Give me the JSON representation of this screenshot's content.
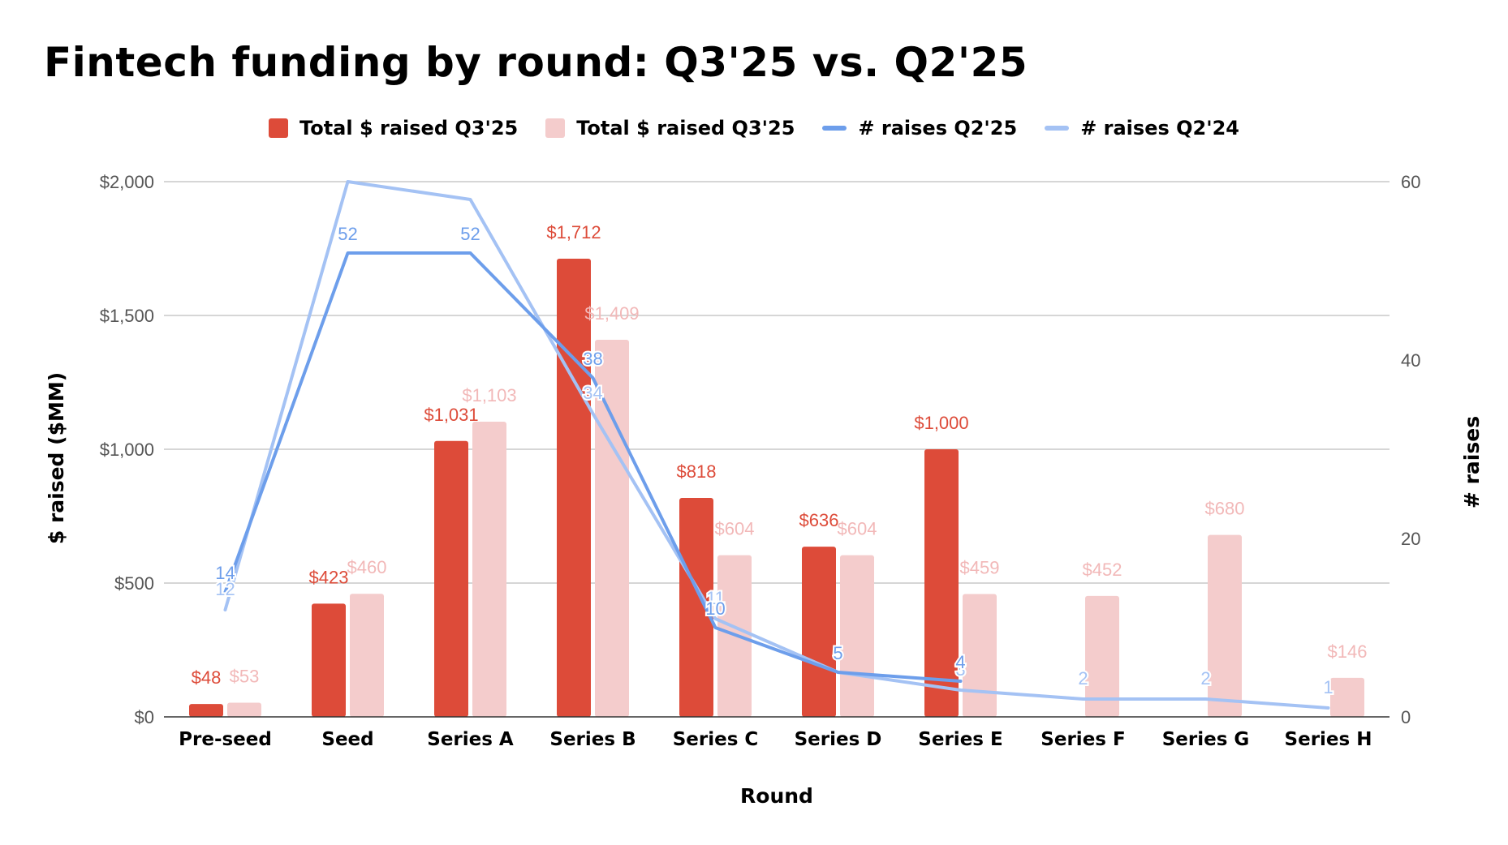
{
  "chart_data": {
    "type": "bar",
    "title": "Fintech funding by round: Q3'25 vs. Q2'25",
    "xlabel": "Round",
    "ylabel": "$ raised ($MM)",
    "y2label": "# raises",
    "ylim": [
      0,
      2000
    ],
    "y2lim": [
      0,
      60
    ],
    "yticks": [
      "$0",
      "$500",
      "$1,000",
      "$1,500",
      "$2,000"
    ],
    "yticks_values": [
      0,
      500,
      1000,
      1500,
      2000
    ],
    "y2ticks": [
      0,
      20,
      40,
      60
    ],
    "grid": true,
    "legend_position": "top-center",
    "categories": [
      "Pre-seed",
      "Seed",
      "Series A",
      "Series B",
      "Series C",
      "Series D",
      "Series E",
      "Series F",
      "Series G",
      "Series H"
    ],
    "bar_series": [
      {
        "name": "Total $ raised Q3'25",
        "color": "#dd4b39",
        "values": [
          48,
          423,
          1031,
          1712,
          818,
          636,
          1000,
          null,
          null,
          null
        ],
        "labels": [
          "$48",
          "$423",
          "$1,031",
          "$1,712",
          "$818",
          "$636",
          "$1,000",
          null,
          null,
          null
        ]
      },
      {
        "name": "Total $ raised Q3'25",
        "color": "#f4cccc",
        "label_color": "#f2b8b8",
        "values": [
          53,
          460,
          1103,
          1409,
          604,
          604,
          459,
          452,
          680,
          146
        ],
        "labels": [
          "$53",
          "$460",
          "$1,103",
          "$1,409",
          "$604",
          "$604",
          "$459",
          "$452",
          "$680",
          "$146"
        ]
      }
    ],
    "line_series": [
      {
        "name": "# raises Q2'25",
        "color": "#6d9eeb",
        "values": [
          14,
          52,
          52,
          38,
          10,
          5,
          4,
          null,
          null,
          null
        ],
        "labels": [
          "14",
          "52",
          "52",
          "38",
          "10",
          "5",
          "4",
          null,
          null,
          null
        ]
      },
      {
        "name": "# raises Q2'24",
        "color": "#a4c2f4",
        "values": [
          12,
          60,
          58,
          34,
          11,
          5,
          3,
          2,
          2,
          1
        ],
        "labels": [
          "12",
          null,
          null,
          "34",
          "11",
          null,
          "3",
          "2",
          "2",
          "1"
        ]
      }
    ]
  }
}
